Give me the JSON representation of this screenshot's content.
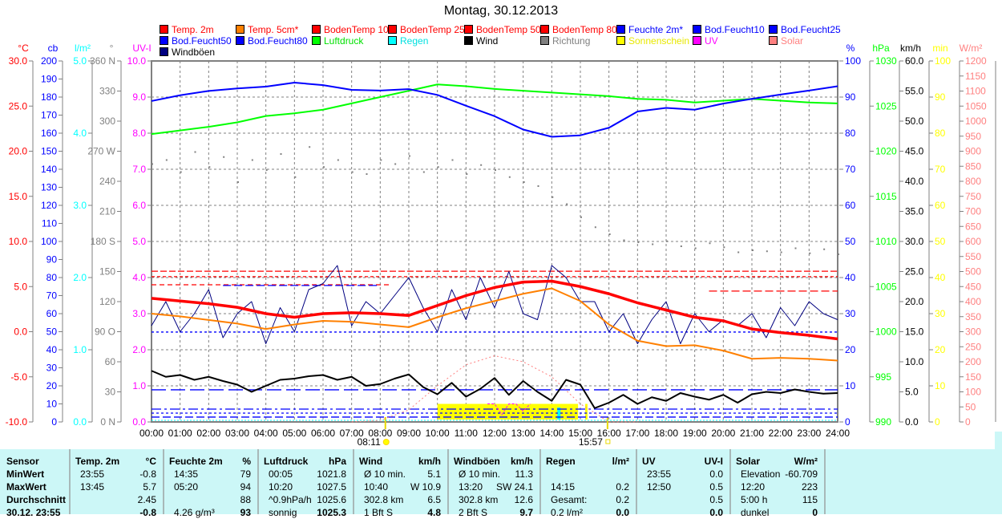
{
  "title": "Montag, 30.12.2013",
  "legend": [
    {
      "label": "Temp. 2m",
      "color": "#ff0000",
      "text_color": "#ff0000"
    },
    {
      "label": "Temp. 5cm*",
      "color": "#ff8000",
      "text_color": "#ff0000"
    },
    {
      "label": "BodenTemp 10",
      "color": "#ff0000",
      "text_color": "#ff0000"
    },
    {
      "label": "BodenTemp 25",
      "color": "#ff0000",
      "text_color": "#ff0000"
    },
    {
      "label": "BodenTemp 50",
      "color": "#ff0000",
      "text_color": "#ff0000"
    },
    {
      "label": "BodenTemp 80",
      "color": "#ff0000",
      "text_color": "#ff0000"
    },
    {
      "label": "Feuchte 2m*",
      "color": "#0000ff",
      "text_color": "#0000ff"
    },
    {
      "label": "Bod.Feucht10",
      "color": "#0000ff",
      "text_color": "#0000ff"
    },
    {
      "label": "Bod.Feucht25",
      "color": "#0000ff",
      "text_color": "#0000ff"
    },
    {
      "label": "Bod.Feucht50",
      "color": "#0000ff",
      "text_color": "#0000ff"
    },
    {
      "label": "Bod.Feucht80",
      "color": "#0000ff",
      "text_color": "#0000ff"
    },
    {
      "label": "Luftdruck",
      "color": "#00ff00",
      "text_color": "#00e000"
    },
    {
      "label": "Regen",
      "color": "#00ffff",
      "text_color": "#00e0e0"
    },
    {
      "label": "Wind",
      "color": "#000000",
      "text_color": "#000000"
    },
    {
      "label": "Richtung",
      "color": "#808080",
      "text_color": "#808080"
    },
    {
      "label": "Sonnenschein",
      "color": "#ffff00",
      "text_color": "#e8e800"
    },
    {
      "label": "UV",
      "color": "#ff00ff",
      "text_color": "#ff00ff"
    },
    {
      "label": "Solar",
      "color": "#ff8080",
      "text_color": "#ff8080"
    },
    {
      "label": "Windböen",
      "color": "#000080",
      "text_color": "#000000"
    }
  ],
  "chart_data": {
    "type": "line",
    "title": "Montag, 30.12.2013",
    "x_labels": [
      "00:00",
      "01:00",
      "02:00",
      "03:00",
      "04:00",
      "05:00",
      "06:00",
      "07:00",
      "08:00",
      "09:00",
      "10:00",
      "11:00",
      "12:00",
      "13:00",
      "14:00",
      "15:00",
      "16:00",
      "17:00",
      "18:00",
      "19:00",
      "20:00",
      "21:00",
      "22:00",
      "23:00",
      "24:00"
    ],
    "xlim_hours": [
      0,
      24
    ],
    "sunrise": "08:11",
    "sunset": "15:57",
    "sunrise_hour": 8.18,
    "sunset_hour": 15.95,
    "axes": [
      {
        "id": "temp",
        "unit": "°C",
        "color": "#ff0000",
        "min": -10,
        "max": 30,
        "step": 5,
        "decimals": 1,
        "side": "left"
      },
      {
        "id": "cb",
        "unit": "cb",
        "color": "#0000ff",
        "min": 0,
        "max": 200,
        "step": 10,
        "decimals": 0,
        "side": "left"
      },
      {
        "id": "rain",
        "unit": "l/m²",
        "color": "#00ffff",
        "min": 0,
        "max": 5,
        "step": 1,
        "decimals": 1,
        "side": "left"
      },
      {
        "id": "dir",
        "unit": "°",
        "color": "#808080",
        "min": 0,
        "max": 360,
        "step": 30,
        "decimals": 0,
        "side": "left",
        "labels": [
          "0  N",
          "30",
          "60",
          "90  O",
          "120",
          "150",
          "180 S",
          "210",
          "240",
          "270 W",
          "300",
          "330",
          "360 N"
        ]
      },
      {
        "id": "uv",
        "unit": "UV-I",
        "color": "#ff00ff",
        "min": 0,
        "max": 10,
        "step": 1,
        "decimals": 1,
        "side": "left"
      },
      {
        "id": "hum",
        "unit": "%",
        "color": "#0000ff",
        "min": 0,
        "max": 100,
        "step": 10,
        "decimals": 0,
        "side": "right"
      },
      {
        "id": "press",
        "unit": "hPa",
        "color": "#00ff00",
        "min": 990,
        "max": 1030,
        "step": 5,
        "decimals": 0,
        "side": "right"
      },
      {
        "id": "wind",
        "unit": "km/h",
        "color": "#000000",
        "min": 0,
        "max": 60,
        "step": 5,
        "decimals": 1,
        "side": "right"
      },
      {
        "id": "sun",
        "unit": "min",
        "color": "#ffff00",
        "min": 0,
        "max": 100,
        "step": 10,
        "decimals": 0,
        "side": "right"
      },
      {
        "id": "solar",
        "unit": "W/m²",
        "color": "#ff8080",
        "min": 0,
        "max": 1200,
        "step": 50,
        "decimals": 0,
        "side": "right"
      }
    ],
    "series": [
      {
        "name": "Luftdruck",
        "axis": "press",
        "color": "#00ff00",
        "width": 2,
        "step_hours": 1,
        "values": [
          1021.9,
          1022.3,
          1022.7,
          1023.2,
          1023.9,
          1024.2,
          1024.6,
          1025.3,
          1026.0,
          1026.7,
          1027.4,
          1027.2,
          1026.9,
          1026.7,
          1026.5,
          1026.3,
          1026.1,
          1025.8,
          1025.7,
          1025.4,
          1025.6,
          1025.8,
          1025.6,
          1025.4,
          1025.3
        ]
      },
      {
        "name": "Feuchte 2m",
        "axis": "hum",
        "color": "#0000ff",
        "width": 2,
        "step_hours": 1,
        "values": [
          88.9,
          90.5,
          91.7,
          92.4,
          92.9,
          94.0,
          93.3,
          92.0,
          91.8,
          92.2,
          90.6,
          87.6,
          84.7,
          81.0,
          79.0,
          79.4,
          81.5,
          86.0,
          87.0,
          86.5,
          88.2,
          89.5,
          90.7,
          91.8,
          93.0
        ]
      },
      {
        "name": "Windböen",
        "axis": "wind",
        "color": "#000080",
        "width": 1,
        "step_hours": 0.5,
        "values": [
          16,
          20,
          15,
          18,
          22,
          14,
          18,
          20,
          13,
          19,
          15,
          22,
          23,
          26,
          16,
          20,
          18,
          21,
          24,
          19,
          15,
          22,
          17,
          24,
          19,
          25,
          18,
          17,
          26,
          24,
          20,
          20,
          15,
          18,
          13,
          17,
          20,
          13,
          18,
          15,
          17,
          16,
          18,
          14,
          19,
          16,
          20,
          18,
          17
        ]
      },
      {
        "name": "Temp. 5cm",
        "axis": "temp",
        "color": "#ff8000",
        "width": 2,
        "step_hours": 1,
        "values": [
          2.0,
          1.7,
          1.3,
          0.9,
          0.3,
          0.8,
          1.2,
          1.1,
          0.8,
          0.5,
          1.6,
          2.6,
          3.4,
          4.2,
          4.8,
          3.4,
          0.8,
          -1.0,
          -1.6,
          -1.5,
          -2.1,
          -3.0,
          -2.9,
          -3.0,
          -3.2
        ]
      },
      {
        "name": "Temp. 2m",
        "axis": "temp",
        "color": "#ff0000",
        "width": 3.5,
        "step_hours": 1,
        "values": [
          3.7,
          3.4,
          3.1,
          2.7,
          2.0,
          1.6,
          2.0,
          2.1,
          2.0,
          1.8,
          2.9,
          4.0,
          4.9,
          5.5,
          5.6,
          5.0,
          4.2,
          3.2,
          2.4,
          1.6,
          1.2,
          0.3,
          -0.1,
          -0.4,
          -0.8
        ]
      },
      {
        "name": "Wind",
        "axis": "wind",
        "color": "#000000",
        "width": 2,
        "step_hours": 0.5,
        "values": [
          8.5,
          7.5,
          7.8,
          7.0,
          7.5,
          6.8,
          6.2,
          5.0,
          6.0,
          7.0,
          7.2,
          7.6,
          7.8,
          7.0,
          7.5,
          6.0,
          6.3,
          7.2,
          7.9,
          5.8,
          4.6,
          6.5,
          4.2,
          5.5,
          7.3,
          4.5,
          6.8,
          5.0,
          3.5,
          7.0,
          6.2,
          2.3,
          3.2,
          4.5,
          3.0,
          4.1,
          3.5,
          4.8,
          4.2,
          3.7,
          4.5,
          3.2,
          4.6,
          5.0,
          4.8,
          5.4,
          5.0,
          4.7,
          4.8
        ]
      }
    ],
    "direction": {
      "name": "Richtung",
      "axis": "dir",
      "color": "#808080",
      "step_hours": 0.5,
      "values": [
        258,
        262,
        250,
        270,
        255,
        265,
        240,
        262,
        252,
        268,
        245,
        275,
        255,
        262,
        250,
        248,
        262,
        258,
        266,
        250,
        255,
        262,
        248,
        257,
        252,
        245,
        240,
        236,
        225,
        218,
        205,
        195,
        188,
        182,
        180,
        178,
        181,
        176,
        174,
        179,
        175,
        170,
        172,
        171,
        170,
        174,
        169,
        173,
        168
      ]
    },
    "solar": {
      "name": "Solar",
      "axis": "solar",
      "color": "#ff8080",
      "step_hours": 1,
      "values": [
        0,
        0,
        0,
        0,
        0,
        0,
        0,
        0,
        5,
        40,
        120,
        190,
        220,
        200,
        150,
        60,
        0,
        0,
        0,
        0,
        0,
        0,
        0,
        0,
        0
      ]
    },
    "sunshine": {
      "name": "Sonnenschein",
      "axis": "sun",
      "color": "#ffff00",
      "blocks": [
        {
          "start": 10.0,
          "end": 14.92,
          "value": 5
        },
        {
          "start": 15.17,
          "end": 15.25,
          "value": 5
        }
      ]
    },
    "rain": {
      "name": "Regen",
      "axis": "rain",
      "color": "#00ffff",
      "events": [
        {
          "hour": 14.25,
          "value": 0.2
        }
      ]
    },
    "uv": {
      "name": "UV",
      "axis": "uv",
      "color": "#ff00ff",
      "step_hours": 0.25,
      "start": 11.75,
      "values": [
        0.5,
        0.5,
        0.2,
        0.5,
        0.5,
        0.3,
        0.5
      ]
    },
    "reference_lines": [
      {
        "name": "BodenTemp 10",
        "axis": "temp",
        "color": "#ff0000",
        "value": 6.7,
        "from": 0,
        "to": 24,
        "dash": "8,3"
      },
      {
        "name": "BodenTemp 25",
        "axis": "temp",
        "color": "#ff0000",
        "value": 6.1,
        "from": 0,
        "to": 24,
        "dash": "4,3"
      },
      {
        "name": "BodenTemp 50",
        "axis": "temp",
        "color": "#ff0000",
        "value": 5.2,
        "from": 0,
        "to": 8.4,
        "dash": "6,4"
      },
      {
        "name": "BodenTemp 80",
        "axis": "temp",
        "color": "#ff0000",
        "value": 4.5,
        "from": 19.5,
        "to": 24,
        "dash": "10,4"
      },
      {
        "name": "Bod.Feucht10",
        "axis": "cb",
        "color": "#0000ff",
        "value": 75.6,
        "from": 2.5,
        "to": 8.0,
        "dash": "10,4"
      },
      {
        "name": "Bod.Feucht25",
        "axis": "cb",
        "color": "#0000ff",
        "value": 49.8,
        "from": 0,
        "to": 24,
        "dash": "3,3"
      },
      {
        "name": "Bod.Feucht50",
        "axis": "cb",
        "color": "#0000ff",
        "value": 17.8,
        "from": 0,
        "to": 24,
        "dash": "18,6"
      },
      {
        "name": "Bod.Feucht80",
        "axis": "cb",
        "color": "#0000ff",
        "value": 7.1,
        "from": 0,
        "to": 24,
        "dash": "12,4,3,4"
      },
      {
        "name": "Feuchte 2m* ref",
        "axis": "cb",
        "color": "#0000ff",
        "value": 4.9,
        "from": 0,
        "to": 24,
        "dash": "3,3"
      },
      {
        "name": "Bod.Feucht ref",
        "axis": "cb",
        "color": "#0000ff",
        "value": 2.7,
        "from": 0,
        "to": 24,
        "dash": "10,4"
      }
    ]
  },
  "table": {
    "sensor": {
      "header": "Sensor",
      "rows": [
        "MinWert",
        "MaxWert",
        "Durchschnitt",
        "30.12. 23:55"
      ]
    },
    "columns": [
      {
        "header": [
          "Temp. 2m",
          "°C"
        ],
        "rows": [
          [
            "23:55",
            "-0.8"
          ],
          [
            "13:45",
            "5.7"
          ],
          [
            "",
            "2.45"
          ],
          [
            "",
            "-0.8"
          ]
        ]
      },
      {
        "header": [
          "Feuchte 2m",
          "%"
        ],
        "rows": [
          [
            "14:35",
            "79"
          ],
          [
            "05:20",
            "94"
          ],
          [
            "",
            "88"
          ],
          [
            "4.26 g/m³",
            "93"
          ]
        ]
      },
      {
        "header": [
          "Luftdruck",
          "hPa"
        ],
        "rows": [
          [
            "00:05",
            "1021.8"
          ],
          [
            "10:20",
            "1027.5"
          ],
          [
            "^0.9hPa/h",
            "1025.6"
          ],
          [
            "sonnig",
            "1025.3"
          ]
        ]
      },
      {
        "header": [
          "Wind",
          "km/h"
        ],
        "rows": [
          [
            "Ø 10 min.",
            "5.1"
          ],
          [
            "10:40",
            "W 10.9"
          ],
          [
            "302.8 km",
            "6.5"
          ],
          [
            "1 Bft S",
            "4.8"
          ]
        ]
      },
      {
        "header": [
          "Windböen",
          "km/h"
        ],
        "rows": [
          [
            "Ø 10 min.",
            "11.3"
          ],
          [
            "13:20",
            "SW 24.1"
          ],
          [
            "302.8 km",
            "12.6"
          ],
          [
            "2 Bft S",
            "9.7"
          ]
        ]
      },
      {
        "header": [
          "Regen",
          "l/m²"
        ],
        "rows": [
          [
            "",
            ""
          ],
          [
            "14:15",
            "0.2"
          ],
          [
            "Gesamt:",
            "0.2"
          ],
          [
            "0.2 l/m²",
            "0.0"
          ]
        ]
      },
      {
        "header": [
          "UV",
          "UV-I"
        ],
        "rows": [
          [
            "23:55",
            "0.0"
          ],
          [
            "12:50",
            "0.5"
          ],
          [
            "",
            "0.5"
          ],
          [
            "",
            "0.0"
          ]
        ]
      },
      {
        "header": [
          "Solar",
          "W/m²"
        ],
        "rows": [
          [
            "Elevation",
            "-60.709"
          ],
          [
            "12:20",
            "223"
          ],
          [
            "5:00 h",
            "115"
          ],
          [
            "dunkel",
            "0"
          ]
        ]
      }
    ]
  }
}
